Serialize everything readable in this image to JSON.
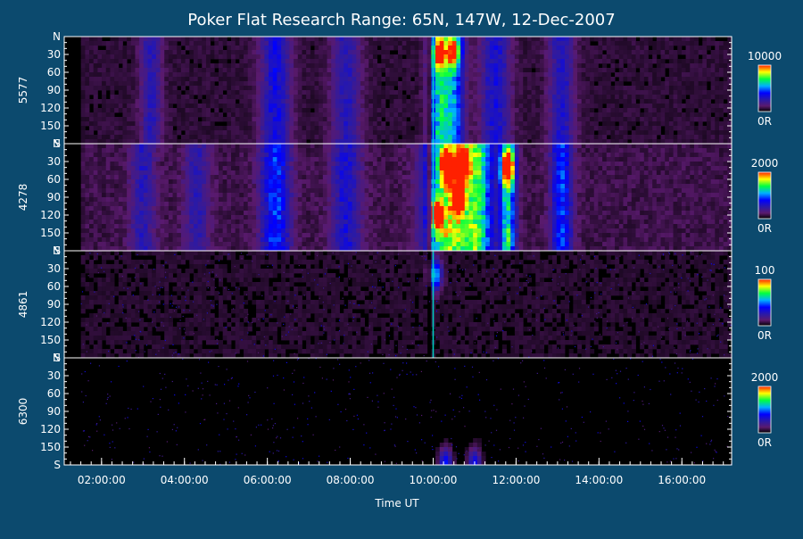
{
  "chart_data": {
    "type": "heatmap",
    "title": "Poker Flat Research Range: 65N, 147W, 12-Dec-2007",
    "xlabel": "Time UT",
    "x_tick_labels": [
      "02:00:00",
      "04:00:00",
      "06:00:00",
      "08:00:00",
      "10:00:00",
      "12:00:00",
      "14:00:00",
      "16:00:00"
    ],
    "x_tick_hours": [
      2,
      4,
      6,
      8,
      10,
      12,
      14,
      16
    ],
    "xlim_hours": [
      1.1,
      17.2
    ],
    "y_tick_labels": [
      "N",
      "30",
      "60",
      "90",
      "120",
      "150",
      "S"
    ],
    "y_tick_values": [
      0,
      30,
      60,
      90,
      120,
      150,
      180
    ],
    "ylim": [
      0,
      180
    ],
    "colorbar_min_label": "0R",
    "panels": [
      {
        "label": "5577",
        "colorbar_max": 10000,
        "data_start_hour": 1.5,
        "background_level": 0.06,
        "bands": [
          {
            "t": 3.2,
            "level": 0.22,
            "width": 0.25
          },
          {
            "t": 6.2,
            "level": 0.3,
            "width": 0.35
          },
          {
            "t": 7.9,
            "level": 0.22,
            "width": 0.35
          },
          {
            "t": 10.15,
            "level": 0.55,
            "width": 0.25
          },
          {
            "t": 10.5,
            "level": 0.45,
            "width": 0.25
          },
          {
            "t": 11.5,
            "level": 0.28,
            "width": 0.35
          },
          {
            "t": 13.1,
            "level": 0.25,
            "width": 0.3
          }
        ],
        "hotspots": [
          {
            "t": 10.15,
            "y": 30,
            "level": 0.65
          },
          {
            "t": 10.5,
            "y": 25,
            "level": 0.6
          }
        ],
        "onset_hour": 10.0
      },
      {
        "label": "4278",
        "colorbar_max": 2000,
        "data_start_hour": 1.5,
        "background_level": 0.08,
        "bands": [
          {
            "t": 3.0,
            "level": 0.2,
            "width": 0.3
          },
          {
            "t": 4.3,
            "level": 0.18,
            "width": 0.3
          },
          {
            "t": 6.2,
            "level": 0.38,
            "width": 0.35
          },
          {
            "t": 7.9,
            "level": 0.25,
            "width": 0.35
          },
          {
            "t": 10.4,
            "level": 0.75,
            "width": 0.55
          },
          {
            "t": 11.1,
            "level": 0.55,
            "width": 0.35
          },
          {
            "t": 11.8,
            "level": 0.62,
            "width": 0.18
          },
          {
            "t": 13.1,
            "level": 0.38,
            "width": 0.25
          }
        ],
        "hotspots": [
          {
            "t": 10.35,
            "y": 40,
            "level": 0.95
          },
          {
            "t": 10.7,
            "y": 35,
            "level": 0.92
          },
          {
            "t": 10.1,
            "y": 120,
            "level": 0.85
          },
          {
            "t": 10.6,
            "y": 95,
            "level": 0.8
          },
          {
            "t": 11.8,
            "y": 40,
            "level": 0.8
          }
        ],
        "onset_hour": 10.0
      },
      {
        "label": "4861",
        "colorbar_max": 100,
        "data_start_hour": 1.5,
        "background_level": 0.05,
        "bands": [],
        "hotspots": [
          {
            "t": 10.05,
            "y": 40,
            "level": 0.55
          }
        ],
        "onset_hour": 10.0
      },
      {
        "label": "6300",
        "colorbar_max": 2000,
        "data_start_hour": 1.5,
        "background_level": 0.02,
        "bands": [],
        "hotspots": [
          {
            "t": 10.3,
            "y": 178,
            "level": 0.4
          },
          {
            "t": 11.0,
            "y": 178,
            "level": 0.35
          }
        ],
        "onset_hour": null
      }
    ],
    "grid": false,
    "legend": "colorbars-right"
  }
}
